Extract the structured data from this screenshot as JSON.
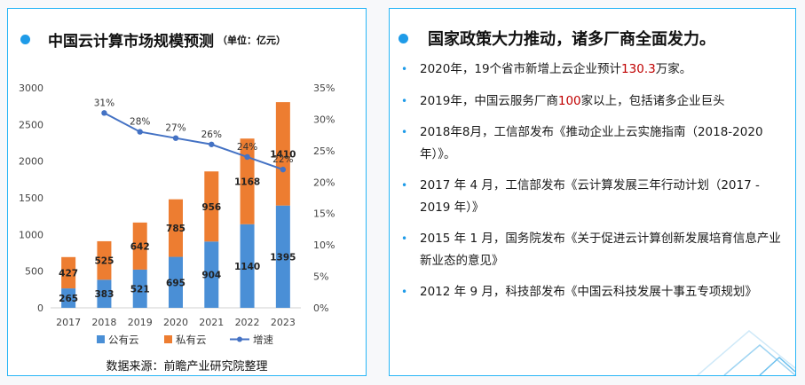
{
  "left": {
    "title": "中国云计算市场规模预测",
    "unit": "（单位：亿元）",
    "source": "数据来源：前瞻产业研究院整理"
  },
  "right": {
    "title": "国家政策大力推动，诸多厂商全面发力。",
    "items": [
      {
        "pre": "2020年，19个省市新增上云企业预计",
        "hl": "130.3",
        "post": "万家。"
      },
      {
        "pre": "2019年，中国云服务厂商",
        "hl": "100",
        "post": "家以上，包括诸多企业巨头"
      },
      {
        "pre": "2018年8月，工信部发布《推动企业上云实施指南（2018-2020年）》。",
        "hl": "",
        "post": ""
      },
      {
        "pre": "2017 年 4 月，工信部发布《云计算发展三年行动计划（2017 - 2019 年）》",
        "hl": "",
        "post": ""
      },
      {
        "pre": "2015 年 1 月，国务院发布《关于促进云计算创新发展培育信息产业新业态的意见》",
        "hl": "",
        "post": ""
      },
      {
        "pre": "2012 年 9 月，科技部发布《中国云科技发展十事五专项规划》",
        "hl": "",
        "post": ""
      }
    ]
  },
  "colors": {
    "public": "#4a8fd6",
    "private": "#ed7d31",
    "growth": "#4472c4",
    "accent": "#1e9be8",
    "border": "#29b6f6",
    "highlight": "#c00000"
  },
  "chart_data": {
    "type": "bar",
    "stacked": true,
    "categories": [
      "2017",
      "2018",
      "2019",
      "2020",
      "2021",
      "2022",
      "2023"
    ],
    "series": [
      {
        "name": "公有云",
        "values": [
          265,
          383,
          521,
          695,
          904,
          1140,
          1395
        ],
        "color": "#4a8fd6"
      },
      {
        "name": "私有云",
        "values": [
          427,
          525,
          642,
          785,
          956,
          1168,
          1410
        ],
        "color": "#ed7d31"
      }
    ],
    "line_series": {
      "name": "增速",
      "x": [
        "2018",
        "2019",
        "2020",
        "2021",
        "2022",
        "2023"
      ],
      "values": [
        31,
        28,
        27,
        26,
        24,
        22
      ],
      "labels": [
        "31%",
        "28%",
        "27%",
        "26%",
        "24%",
        "22%"
      ],
      "axis": "right"
    },
    "y_left": {
      "lim": [
        0,
        3000
      ],
      "ticks": [
        0,
        500,
        1000,
        1500,
        2000,
        2500,
        3000
      ]
    },
    "y_right": {
      "lim": [
        0,
        35
      ],
      "ticks": [
        "0%",
        "5%",
        "10%",
        "15%",
        "20%",
        "25%",
        "30%",
        "35%"
      ]
    },
    "legend": "bottom",
    "grid": false
  }
}
